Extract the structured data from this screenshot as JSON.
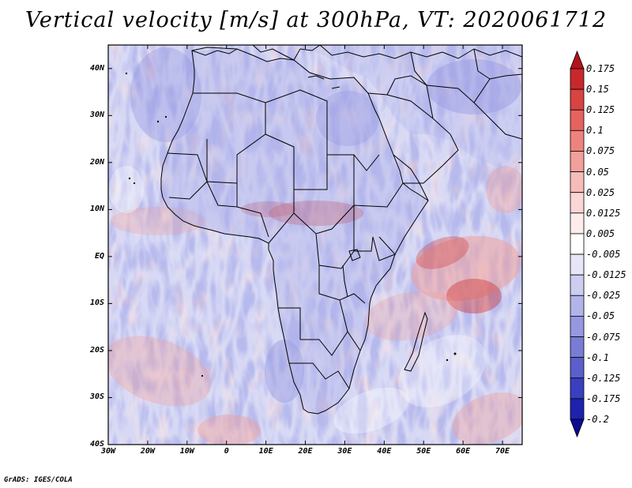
{
  "title": "Vertical velocity [m/s] at 300hPa, VT: 2020061712",
  "footer": "GrADS: IGES/COLA",
  "axes": {
    "lat_labels": [
      "40N",
      "30N",
      "20N",
      "10N",
      "EQ",
      "10S",
      "20S",
      "30S",
      "40S"
    ],
    "lat_values": [
      40,
      30,
      20,
      10,
      0,
      -10,
      -20,
      -30,
      -40
    ],
    "lon_labels": [
      "30W",
      "20W",
      "10W",
      "0",
      "10E",
      "20E",
      "30E",
      "40E",
      "50E",
      "60E",
      "70E"
    ],
    "lon_values": [
      -30,
      -20,
      -10,
      0,
      10,
      20,
      30,
      40,
      50,
      60,
      70
    ],
    "lon_range": [
      -30,
      75
    ],
    "lat_range": [
      -40,
      45
    ]
  },
  "colorbar": {
    "labels": [
      "0.175",
      "0.15",
      "0.125",
      "0.1",
      "0.075",
      "0.05",
      "0.025",
      "0.0125",
      "0.005",
      "-0.005",
      "-0.0125",
      "-0.025",
      "-0.05",
      "-0.075",
      "-0.1",
      "-0.125",
      "-0.175",
      "-0.2"
    ],
    "colors": [
      "#b2141a",
      "#c8282c",
      "#d84442",
      "#e6625e",
      "#ee827e",
      "#f39f9b",
      "#f7bcb9",
      "#fad6d4",
      "#fdeceb",
      "#ffffff",
      "#e6e6f7",
      "#cccdf0",
      "#b1b3e9",
      "#9598e0",
      "#787cd6",
      "#5a5fcb",
      "#3a3fbf",
      "#1e22ad",
      "#0a0c92"
    ],
    "arrow_top_color": "#b2141a",
    "arrow_bottom_color": "#0a0c92"
  },
  "map_colors": {
    "background": "#b6b9ec",
    "warm": "#f0a09b",
    "strong_warm": "#cf3a3a",
    "cool": "#8d90df",
    "white": "#ffffff",
    "border": "#000000"
  }
}
